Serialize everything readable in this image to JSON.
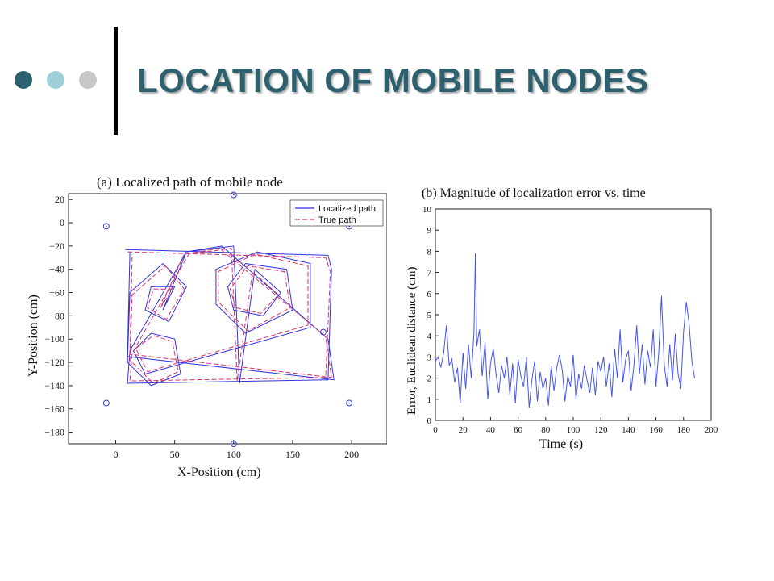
{
  "slide": {
    "title": "LOCATION OF MOBILE NODES",
    "bullet_colors": [
      "#2e6170",
      "#9ecfd6",
      "#c8c8c8"
    ]
  },
  "colors": {
    "localized": "#3333dd",
    "true_path": "#d6336a",
    "anchor": "#3340cc",
    "error": "#4455ee"
  },
  "chart_data": [
    {
      "type": "line",
      "title": "(a) Localized path of mobile node",
      "xlabel": "X-Position (cm)",
      "ylabel": "Y-Position (cm)",
      "xlim": [
        -40,
        230
      ],
      "ylim": [
        -190,
        25
      ],
      "xticks": [
        0,
        50,
        100,
        150,
        200
      ],
      "yticks": [
        20,
        0,
        -20,
        -40,
        -60,
        -80,
        -100,
        -120,
        -140,
        -160,
        -180
      ],
      "legend": {
        "position": "top-right",
        "entries": [
          "Localized path",
          "True path"
        ]
      },
      "anchors": [
        [
          100,
          24
        ],
        [
          -8,
          -3
        ],
        [
          198,
          -3
        ],
        [
          176,
          -94
        ],
        [
          -8,
          -155
        ],
        [
          198,
          -155
        ],
        [
          100,
          -190
        ]
      ],
      "series": [
        {
          "name": "Localized path",
          "points": [
            [
              8,
              -23
            ],
            [
              180,
              -28
            ],
            [
              183,
              -40
            ],
            [
              180,
              -135
            ],
            [
              10,
              -138
            ],
            [
              12,
              -110
            ],
            [
              60,
              -25
            ],
            [
              100,
              -20
            ],
            [
              105,
              -138
            ],
            [
              118,
              -40
            ],
            [
              140,
              -60
            ],
            [
              125,
              -80
            ],
            [
              100,
              -75
            ],
            [
              95,
              -55
            ],
            [
              110,
              -35
            ],
            [
              145,
              -40
            ],
            [
              150,
              -75
            ],
            [
              110,
              -95
            ],
            [
              85,
              -70
            ],
            [
              85,
              -40
            ],
            [
              120,
              -25
            ],
            [
              165,
              -35
            ],
            [
              165,
              -90
            ],
            [
              25,
              -130
            ],
            [
              15,
              -110
            ],
            [
              30,
              -95
            ],
            [
              50,
              -100
            ],
            [
              55,
              -130
            ],
            [
              30,
              -140
            ],
            [
              10,
              -120
            ],
            [
              12,
              -60
            ],
            [
              40,
              -35
            ],
            [
              60,
              -55
            ],
            [
              45,
              -85
            ],
            [
              25,
              -75
            ],
            [
              30,
              -55
            ],
            [
              50,
              -55
            ],
            [
              40,
              -75
            ],
            [
              60,
              -25
            ],
            [
              90,
              -20
            ],
            [
              180,
              -100
            ],
            [
              185,
              -135
            ],
            [
              10,
              -115
            ],
            [
              12,
              -25
            ]
          ]
        },
        {
          "name": "True path",
          "points": [
            [
              10,
              -25
            ],
            [
              178,
              -30
            ],
            [
              182,
              -42
            ],
            [
              178,
              -133
            ],
            [
              12,
              -136
            ],
            [
              14,
              -112
            ],
            [
              62,
              -27
            ],
            [
              98,
              -22
            ],
            [
              103,
              -136
            ],
            [
              116,
              -42
            ],
            [
              138,
              -62
            ],
            [
              123,
              -78
            ],
            [
              102,
              -73
            ],
            [
              97,
              -57
            ],
            [
              112,
              -37
            ],
            [
              143,
              -42
            ],
            [
              148,
              -73
            ],
            [
              112,
              -93
            ],
            [
              87,
              -68
            ],
            [
              87,
              -42
            ],
            [
              118,
              -27
            ],
            [
              163,
              -37
            ],
            [
              163,
              -88
            ],
            [
              27,
              -128
            ],
            [
              17,
              -108
            ],
            [
              32,
              -97
            ],
            [
              48,
              -102
            ],
            [
              53,
              -128
            ],
            [
              32,
              -138
            ],
            [
              12,
              -118
            ],
            [
              14,
              -62
            ],
            [
              42,
              -37
            ],
            [
              58,
              -57
            ],
            [
              43,
              -83
            ],
            [
              27,
              -73
            ],
            [
              32,
              -57
            ],
            [
              48,
              -57
            ],
            [
              38,
              -73
            ],
            [
              58,
              -27
            ],
            [
              88,
              -22
            ],
            [
              178,
              -98
            ],
            [
              183,
              -133
            ],
            [
              12,
              -113
            ],
            [
              14,
              -27
            ]
          ]
        }
      ]
    },
    {
      "type": "line",
      "title": "(b) Magnitude of localization error vs. time",
      "xlabel": "Time (s)",
      "ylabel": "Error, Euclidean distance (cm)",
      "xlim": [
        0,
        200
      ],
      "ylim": [
        0,
        10
      ],
      "xticks": [
        0,
        20,
        40,
        60,
        80,
        100,
        120,
        140,
        160,
        180,
        200
      ],
      "yticks": [
        0,
        1,
        2,
        3,
        4,
        5,
        6,
        7,
        8,
        9,
        10
      ],
      "series": [
        {
          "name": "",
          "x": [
            0,
            2,
            4,
            6,
            8,
            10,
            12,
            14,
            16,
            18,
            20,
            22,
            24,
            26,
            28,
            29,
            30,
            32,
            34,
            36,
            38,
            40,
            42,
            44,
            46,
            48,
            50,
            52,
            54,
            56,
            58,
            60,
            62,
            64,
            66,
            68,
            70,
            72,
            74,
            76,
            78,
            80,
            82,
            84,
            86,
            88,
            90,
            92,
            94,
            96,
            98,
            100,
            102,
            104,
            106,
            108,
            110,
            112,
            114,
            116,
            118,
            120,
            122,
            124,
            126,
            128,
            130,
            132,
            134,
            136,
            138,
            140,
            142,
            144,
            146,
            148,
            150,
            152,
            154,
            156,
            158,
            160,
            162,
            164,
            166,
            168,
            170,
            172,
            174,
            176,
            178,
            180,
            182,
            184,
            186,
            188
          ],
          "y": [
            2.8,
            3.0,
            2.5,
            3.2,
            4.5,
            2.6,
            2.9,
            1.8,
            2.5,
            0.8,
            3.2,
            1.5,
            3.6,
            2.0,
            4.2,
            7.9,
            3.5,
            4.3,
            2.1,
            3.7,
            1.0,
            2.7,
            3.4,
            2.2,
            1.3,
            2.6,
            2.0,
            3.0,
            1.2,
            2.7,
            0.8,
            2.9,
            2.1,
            1.6,
            3.0,
            0.6,
            1.9,
            2.8,
            0.9,
            2.3,
            1.5,
            2.0,
            0.7,
            2.6,
            1.4,
            2.5,
            3.1,
            2.4,
            0.9,
            2.1,
            1.6,
            3.1,
            1.0,
            2.2,
            1.5,
            2.6,
            1.9,
            1.3,
            2.5,
            1.2,
            2.8,
            2.3,
            3.0,
            1.6,
            2.7,
            1.1,
            3.4,
            2.0,
            4.3,
            1.8,
            2.9,
            3.3,
            1.4,
            2.6,
            4.5,
            2.2,
            3.6,
            1.7,
            3.3,
            2.5,
            4.3,
            1.6,
            3.2,
            5.9,
            2.6,
            1.6,
            3.6,
            1.9,
            4.1,
            2.2,
            1.5,
            4.2,
            5.6,
            4.6,
            2.8,
            2.0
          ]
        }
      ]
    }
  ]
}
